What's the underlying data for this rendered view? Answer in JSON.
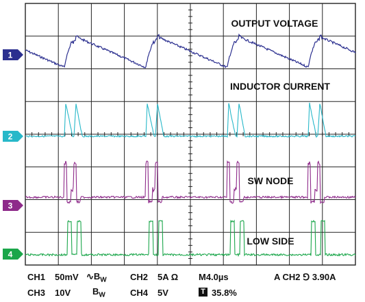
{
  "chart_data": {
    "type": "line",
    "grid": {
      "hdiv": 10,
      "vdiv": 8,
      "minor_per_div": 5
    },
    "channels": [
      {
        "ch": "1",
        "label": "OUTPUT VOLTAGE",
        "color": "#2b2f8f"
      },
      {
        "ch": "2",
        "label": "INDUCTOR CURRENT",
        "color": "#27b8c9"
      },
      {
        "ch": "3",
        "label": "SW NODE",
        "color": "#8e2a8a"
      },
      {
        "ch": "4",
        "label": "LOW SIDE",
        "color": "#1aa64a"
      }
    ]
  },
  "status": {
    "ch1": "CH1",
    "ch1_scale": "50mV",
    "bw_symbol": "∿",
    "bw_b": "B",
    "bw_w": "W",
    "ch2": "CH2",
    "ch2_scale": "5A Ω",
    "timebase": "M4.0µs",
    "trig": "A  CH2 ⅁ 3.90A",
    "ch3": "CH3",
    "ch3_scale": "10V",
    "ch4": "CH4",
    "ch4_scale": "5V",
    "trig_pos_icon": "T",
    "trig_pos": "35.8%"
  }
}
